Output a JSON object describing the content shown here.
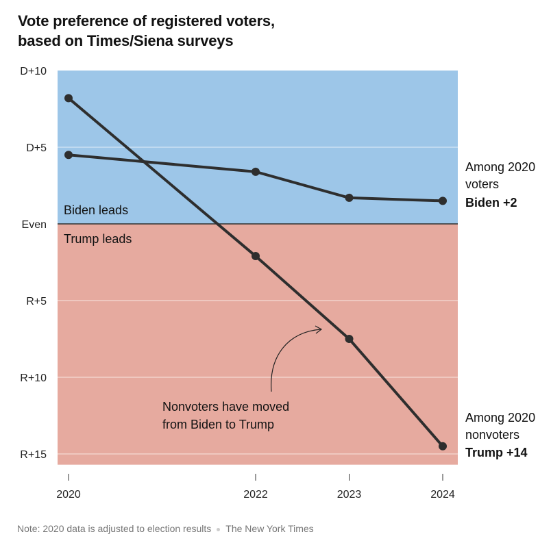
{
  "chart_data": {
    "type": "line",
    "title_line1": "Vote preference of registered voters,",
    "title_line2": "based on Times/Siena surveys",
    "xlabel": "",
    "ylabel": "",
    "x_ticks": [
      2020,
      2022,
      2023,
      2024
    ],
    "x_tick_labels": [
      "2020",
      "2022",
      "2023",
      "2024"
    ],
    "xlim": [
      2019.88,
      2024.16
    ],
    "ylim": [
      -15.7,
      10
    ],
    "y_ticks": [
      10,
      5,
      0,
      -5,
      -10,
      -15
    ],
    "y_tick_labels": [
      "D+10",
      "D+5",
      "Even",
      "R+5",
      "R+10",
      "R+15"
    ],
    "grid": true,
    "regions": [
      {
        "label": "Biden leads",
        "color": "#9dc6e8",
        "range": [
          0,
          10
        ]
      },
      {
        "label": "Trump leads",
        "color": "#e6aa9f",
        "range": [
          -15.7,
          0
        ]
      }
    ],
    "series": [
      {
        "name": "Among 2020 voters",
        "label_line1": "Among 2020",
        "label_line2": "voters",
        "result": "Biden +2",
        "result_color": "#4b8fc6",
        "x": [
          2020,
          2022,
          2023,
          2024
        ],
        "values": [
          4.5,
          3.4,
          1.7,
          1.5
        ]
      },
      {
        "name": "Among 2020 nonvoters",
        "label_line1": "Among 2020",
        "label_line2": "nonvoters",
        "result": "Trump +14",
        "result_color": "#d9706a",
        "x": [
          2020,
          2022,
          2023,
          2024
        ],
        "values": [
          8.2,
          -2.1,
          -7.5,
          -14.5
        ]
      }
    ],
    "annotation_line1": "Nonvoters have moved",
    "annotation_line2": "from Biden to Trump",
    "line_color": "#2e2e2e"
  },
  "footer": {
    "note": "Note: 2020 data is adjusted to election results",
    "source": "The New York Times"
  }
}
